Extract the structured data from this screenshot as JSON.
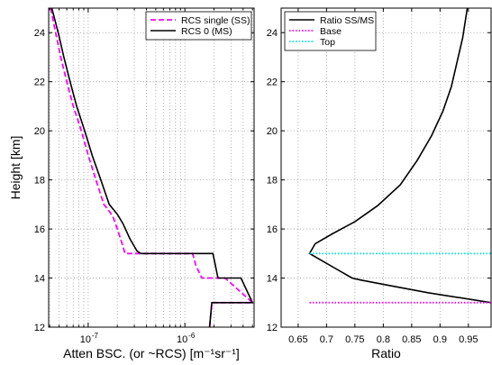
{
  "chart_data": [
    {
      "type": "line",
      "xscale": "log",
      "xlim": [
        3.9e-08,
        5.2e-06
      ],
      "ylim": [
        12,
        25
      ],
      "xlabel": "Atten BSC. (or ~RCS) [m⁻¹sr⁻¹]",
      "ylabel": "Height [km]",
      "xtick_labels": [
        "10",
        "10"
      ],
      "xtick_exponents": [
        "-7",
        "-6"
      ],
      "ytick_values": [
        12,
        14,
        16,
        18,
        20,
        22,
        24
      ],
      "grid": true,
      "legend_position": "top-right",
      "series": [
        {
          "name": "RCS single (SS)",
          "color": "#ff00ff",
          "style": "dashed",
          "x": [
            4.1e-08,
            4.6e-08,
            5.2e-08,
            6e-08,
            7e-08,
            8.5e-08,
            1e-07,
            1.2e-07,
            1.45e-07,
            1.6e-07,
            1.8e-07,
            2e-07,
            2.2e-07,
            2.4e-07,
            1.2e-06,
            1.3e-06,
            1.5e-06,
            2.6e-06,
            5e-06,
            1.9e-06,
            1.8e-06
          ],
          "y": [
            25,
            24,
            23,
            22,
            21,
            20,
            19,
            18,
            17,
            16.8,
            16.5,
            16,
            15.5,
            15,
            15,
            14.5,
            14,
            14,
            13,
            13,
            12
          ]
        },
        {
          "name": "RCS 0 (MS)",
          "color": "#000000",
          "style": "solid",
          "x": [
            4.2e-08,
            4.9e-08,
            5.6e-08,
            6.5e-08,
            7.6e-08,
            9.2e-08,
            1.1e-07,
            1.35e-07,
            1.65e-07,
            2e-07,
            2.3e-07,
            2.7e-07,
            3.2e-07,
            3.5e-07,
            1.95e-06,
            2.2e-06,
            3.8e-06,
            5e-06,
            1.9e-06,
            1.8e-06
          ],
          "y": [
            25,
            24,
            23,
            22,
            21,
            20,
            19,
            18,
            17,
            16.6,
            16.2,
            15.6,
            15.1,
            15,
            15,
            14,
            14,
            13,
            13,
            12
          ]
        }
      ]
    },
    {
      "type": "line",
      "xlim": [
        0.62,
        0.99
      ],
      "ylim": [
        12,
        25
      ],
      "xlabel": "Ratio",
      "xtick_values": [
        0.65,
        0.7,
        0.75,
        0.8,
        0.85,
        0.9,
        0.95
      ],
      "ytick_values": [
        12,
        14,
        16,
        18,
        20,
        22,
        24
      ],
      "grid": true,
      "legend_position": "top-left",
      "series": [
        {
          "name": "Ratio SS/MS",
          "color": "#000000",
          "style": "solid",
          "x": [
            0.99,
            0.88,
            0.81,
            0.76,
            0.745,
            0.67,
            0.68,
            0.71,
            0.75,
            0.79,
            0.83,
            0.86,
            0.885,
            0.905,
            0.92,
            0.93,
            0.94,
            0.948
          ],
          "y": [
            13,
            13.4,
            13.7,
            13.92,
            14,
            15,
            15.4,
            15.8,
            16.3,
            16.95,
            17.8,
            18.8,
            19.8,
            20.8,
            21.8,
            22.8,
            23.8,
            25
          ]
        },
        {
          "name": "Base",
          "color": "#ff00ff",
          "style": "dotted",
          "x": [
            0.67,
            0.99
          ],
          "y": [
            13,
            13
          ]
        },
        {
          "name": "Top",
          "color": "#00e5e5",
          "style": "dotted",
          "x": [
            0.67,
            0.99
          ],
          "y": [
            15,
            15
          ]
        }
      ]
    }
  ]
}
